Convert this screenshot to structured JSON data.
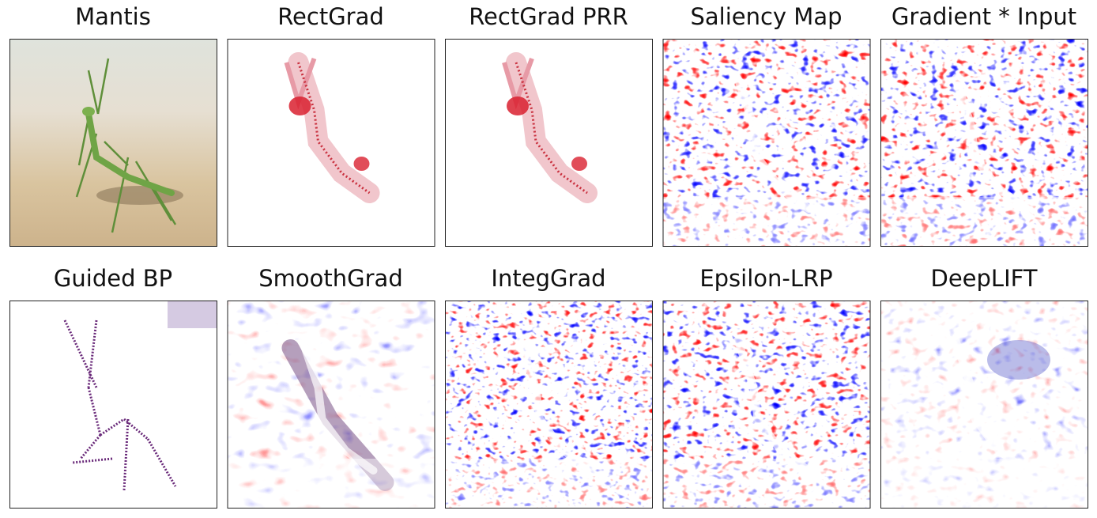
{
  "panels": [
    {
      "title": "Mantis"
    },
    {
      "title": "RectGrad"
    },
    {
      "title": "RectGrad PRR"
    },
    {
      "title": "Saliency Map"
    },
    {
      "title": "Gradient * Input"
    },
    {
      "title": "Guided BP"
    },
    {
      "title": "SmoothGrad"
    },
    {
      "title": "IntegGrad"
    },
    {
      "title": "Epsilon-LRP"
    },
    {
      "title": "DeepLIFT"
    }
  ]
}
